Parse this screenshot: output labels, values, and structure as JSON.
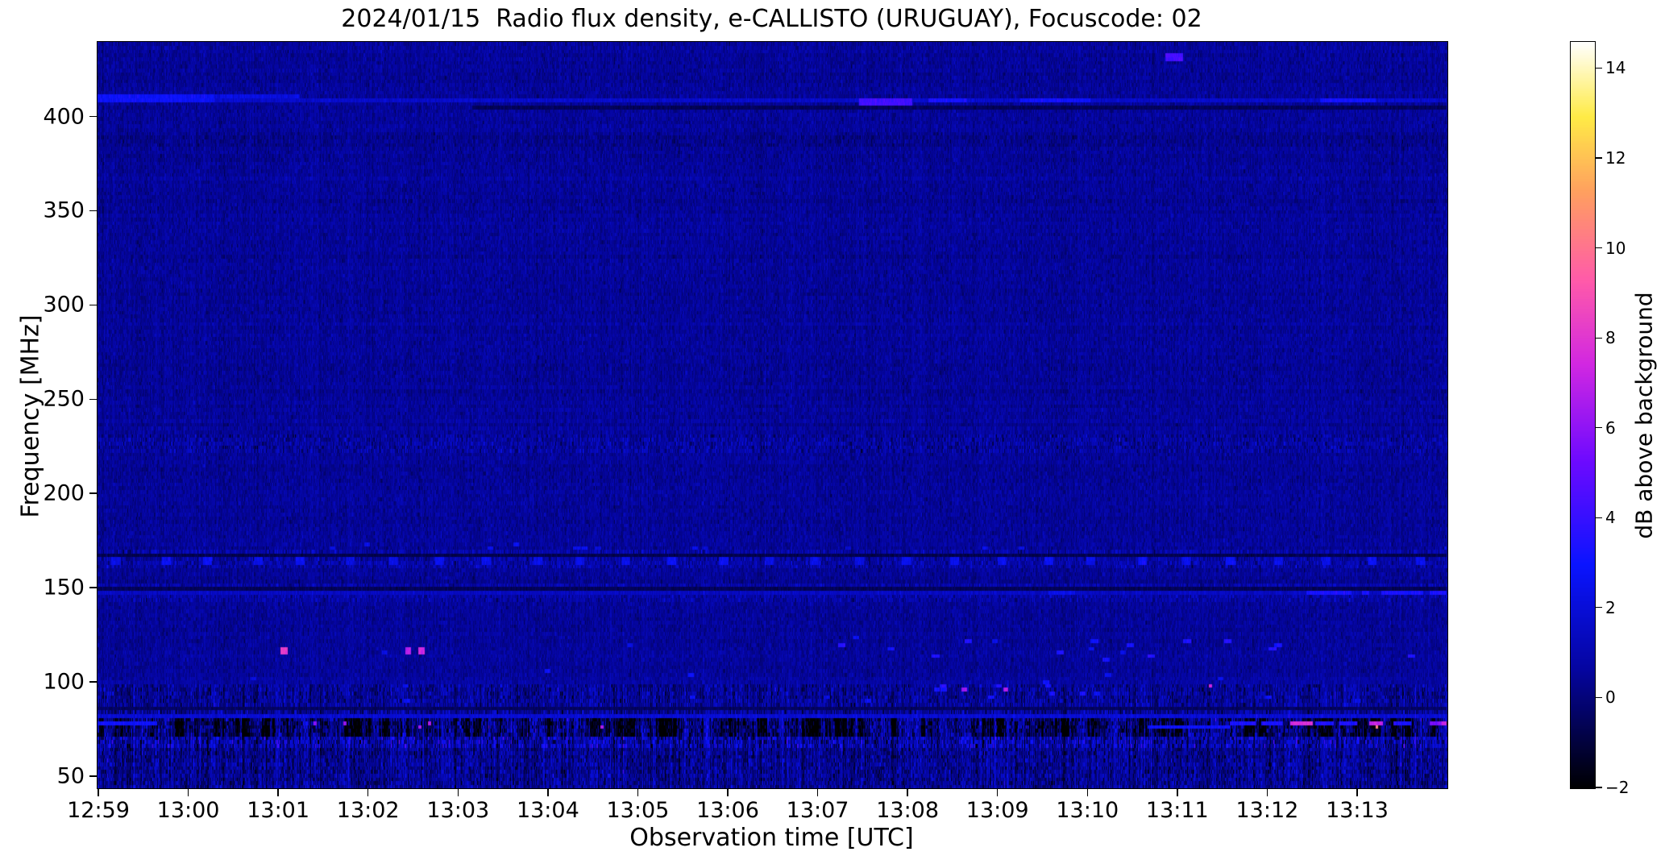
{
  "figure": {
    "background": "#ffffff",
    "text_color": "#000000"
  },
  "chart_data": {
    "type": "heatmap",
    "title": "2024/01/15  Radio flux density, e-CALLISTO (URUGUAY), Focuscode: 02",
    "xlabel": "Observation time [UTC]",
    "ylabel": "Frequency [MHz]",
    "colorbar_label": "dB above background",
    "x_ticks": [
      "12:59",
      "13:00",
      "13:01",
      "13:02",
      "13:03",
      "13:04",
      "13:05",
      "13:06",
      "13:07",
      "13:08",
      "13:09",
      "13:10",
      "13:11",
      "13:12",
      "13:13"
    ],
    "x_start": "12:59:00",
    "x_end": "13:14:00",
    "duration_s": 900,
    "y_ticks_mhz": [
      400,
      350,
      300,
      250,
      200,
      150,
      100,
      50
    ],
    "freq_range_mhz": [
      44,
      440
    ],
    "colorbar_ticks_db": [
      14,
      12,
      10,
      8,
      6,
      4,
      2,
      0,
      -2
    ],
    "value_range_db": [
      -2,
      14.6
    ],
    "grid": false,
    "colormap_stops": [
      [
        0.0,
        [
          0,
          0,
          0
        ]
      ],
      [
        0.16,
        [
          5,
          5,
          160
        ]
      ],
      [
        0.3,
        [
          10,
          20,
          255
        ]
      ],
      [
        0.44,
        [
          110,
          10,
          255
        ]
      ],
      [
        0.57,
        [
          210,
          40,
          225
        ]
      ],
      [
        0.68,
        [
          255,
          90,
          170
        ]
      ],
      [
        0.8,
        [
          255,
          160,
          95
        ]
      ],
      [
        0.9,
        [
          255,
          235,
          70
        ]
      ],
      [
        1.0,
        [
          255,
          255,
          255
        ]
      ]
    ],
    "noise": {
      "seed": 42,
      "rows": 200,
      "row_sigma": 0.07,
      "pixel_jitter": 0.22,
      "bands": [
        {
          "f0": 100,
          "f1": 440,
          "mean": 0.55,
          "sigma": 0.38,
          "stripe": 0.0
        },
        {
          "f0": 84,
          "f1": 100,
          "mean": 0.5,
          "sigma": 0.75,
          "stripe": 0.9
        },
        {
          "f0": 71,
          "f1": 84,
          "mean": -0.1,
          "sigma": 1.1,
          "stripe": 1.1,
          "dark_runs": true
        },
        {
          "f0": 44,
          "f1": 71,
          "mean": 0.45,
          "sigma": 0.8,
          "stripe": 1.0
        }
      ]
    },
    "features": [
      {
        "kind": "hline",
        "f": 408.5,
        "t0": 0,
        "t1": 900,
        "v": 1.7,
        "h": 1
      },
      {
        "kind": "hline",
        "f": 410.5,
        "t0": 0,
        "t1": 78,
        "v": 2.9,
        "h": 2
      },
      {
        "kind": "hline",
        "f": 410.5,
        "t0": 78,
        "t1": 135,
        "v": 2.2,
        "h": 1
      },
      {
        "kind": "hline",
        "f": 405.5,
        "t0": 250,
        "t1": 900,
        "v": -0.5,
        "h": 1
      },
      {
        "kind": "seg",
        "f": 409.5,
        "t0": 508,
        "t1": 543,
        "v": 4.3,
        "h": 2
      },
      {
        "kind": "seg",
        "f": 409.0,
        "t0": 554,
        "t1": 580,
        "v": 3.2,
        "h": 1
      },
      {
        "kind": "seg",
        "f": 409.0,
        "t0": 615,
        "t1": 662,
        "v": 3.0,
        "h": 1
      },
      {
        "kind": "seg",
        "f": 409.0,
        "t0": 815,
        "t1": 852,
        "v": 3.1,
        "h": 1
      },
      {
        "kind": "blob",
        "f": 434.0,
        "t0": 712,
        "t1": 724,
        "v": 4.4,
        "h": 2
      },
      {
        "kind": "band",
        "f0": 385,
        "f1": 390,
        "amp": 0.15,
        "off": -0.25
      },
      {
        "kind": "band",
        "f0": 224,
        "f1": 231,
        "amp": 0.55,
        "off": 0.1
      },
      {
        "kind": "band",
        "f0": 162,
        "f1": 170,
        "amp": 0.5,
        "off": 0.25
      },
      {
        "kind": "hline",
        "f": 168.5,
        "t0": 0,
        "t1": 900,
        "v": -0.7,
        "h": 1
      },
      {
        "kind": "dots",
        "f": 165.5,
        "t0": 10,
        "t1": 900,
        "spacing": 31,
        "w": 6,
        "h": 2,
        "v": 2.5
      },
      {
        "kind": "rdots",
        "f0": 171,
        "f1": 174,
        "t0": 0,
        "t1": 900,
        "count": 14,
        "v": 2.3,
        "h": 1,
        "w": 4
      },
      {
        "kind": "band",
        "f0": 144,
        "f1": 152,
        "amp": 0.4,
        "off": 0.15
      },
      {
        "kind": "hline",
        "f": 150.5,
        "t0": 0,
        "t1": 900,
        "v": -0.55,
        "h": 1
      },
      {
        "kind": "hline",
        "f": 147.0,
        "t0": 0,
        "t1": 900,
        "v": 1.4,
        "h": 1
      },
      {
        "kind": "seg",
        "f": 147.0,
        "t0": 634,
        "t1": 652,
        "v": 2.4,
        "h": 1
      },
      {
        "kind": "dashes",
        "f": 147.0,
        "v": 3.3,
        "h": 1,
        "segs": [
          [
            806,
            836
          ],
          [
            843,
            848
          ],
          [
            856,
            884
          ],
          [
            888,
            900
          ]
        ]
      },
      {
        "kind": "blob",
        "f": 118,
        "t0": 122,
        "t1": 127,
        "v": 8.3,
        "h": 2
      },
      {
        "kind": "blob",
        "f": 118,
        "t0": 205,
        "t1": 209,
        "v": 6.8,
        "h": 2
      },
      {
        "kind": "blob",
        "f": 118,
        "t0": 214,
        "t1": 218,
        "v": 7.4,
        "h": 2
      },
      {
        "kind": "rdots",
        "f0": 112,
        "f1": 122,
        "t0": 480,
        "t1": 900,
        "count": 14,
        "v": 3.2,
        "h": 1,
        "w": 5
      },
      {
        "kind": "rdots",
        "f0": 92,
        "f1": 99,
        "t0": 540,
        "t1": 660,
        "count": 8,
        "v": 3.5,
        "h": 1,
        "w": 4
      },
      {
        "kind": "blob",
        "f": 96,
        "t0": 576,
        "t1": 580,
        "v": 6.2,
        "h": 1
      },
      {
        "kind": "blob",
        "f": 96,
        "t0": 604,
        "t1": 607,
        "v": 6.5,
        "h": 1
      },
      {
        "kind": "rdots",
        "f0": 88,
        "f1": 124,
        "t0": 0,
        "t1": 900,
        "count": 20,
        "v": 2.6,
        "h": 1,
        "w": 4
      },
      {
        "kind": "hline",
        "f": 83.0,
        "t0": 0,
        "t1": 900,
        "v": 1.9,
        "h": 1
      },
      {
        "kind": "hline",
        "f": 86.0,
        "t0": 0,
        "t1": 900,
        "v": -0.4,
        "h": 1
      },
      {
        "kind": "band",
        "f0": 66,
        "f1": 70,
        "amp": 0.9,
        "off": 0.5
      },
      {
        "kind": "seg",
        "f": 78.0,
        "t0": 0,
        "t1": 40,
        "v": 3.0,
        "h": 1
      },
      {
        "kind": "seg",
        "f": 77.5,
        "t0": 700,
        "t1": 755,
        "v": 2.8,
        "h": 1
      },
      {
        "kind": "dashes",
        "f": 78.5,
        "v": 3.4,
        "h": 1,
        "segs": [
          [
            755,
            772
          ],
          [
            776,
            790
          ],
          [
            812,
            824
          ],
          [
            828,
            840
          ],
          [
            864,
            876
          ]
        ]
      },
      {
        "kind": "seg",
        "f": 78.5,
        "t0": 795,
        "t1": 810,
        "v": 7.6,
        "h": 1
      },
      {
        "kind": "seg",
        "f": 78.5,
        "t0": 848,
        "t1": 857,
        "v": 7.0,
        "h": 1
      },
      {
        "kind": "seg",
        "f": 79.0,
        "t0": 888,
        "t1": 900,
        "v": 5.5,
        "h": 1
      },
      {
        "kind": "seg",
        "f": 78.5,
        "t0": 896,
        "t1": 900,
        "v": 7.2,
        "h": 1
      },
      {
        "kind": "blob",
        "f": 76,
        "t0": 852,
        "t1": 854,
        "v": 10.5,
        "h": 1
      },
      {
        "kind": "blob",
        "f": 99,
        "t0": 741,
        "t1": 743,
        "v": 7.5,
        "h": 1
      },
      {
        "kind": "rdots",
        "f0": 76,
        "f1": 80,
        "t0": 60,
        "t1": 350,
        "count": 5,
        "v": 6.3,
        "h": 1,
        "w": 2
      }
    ]
  }
}
